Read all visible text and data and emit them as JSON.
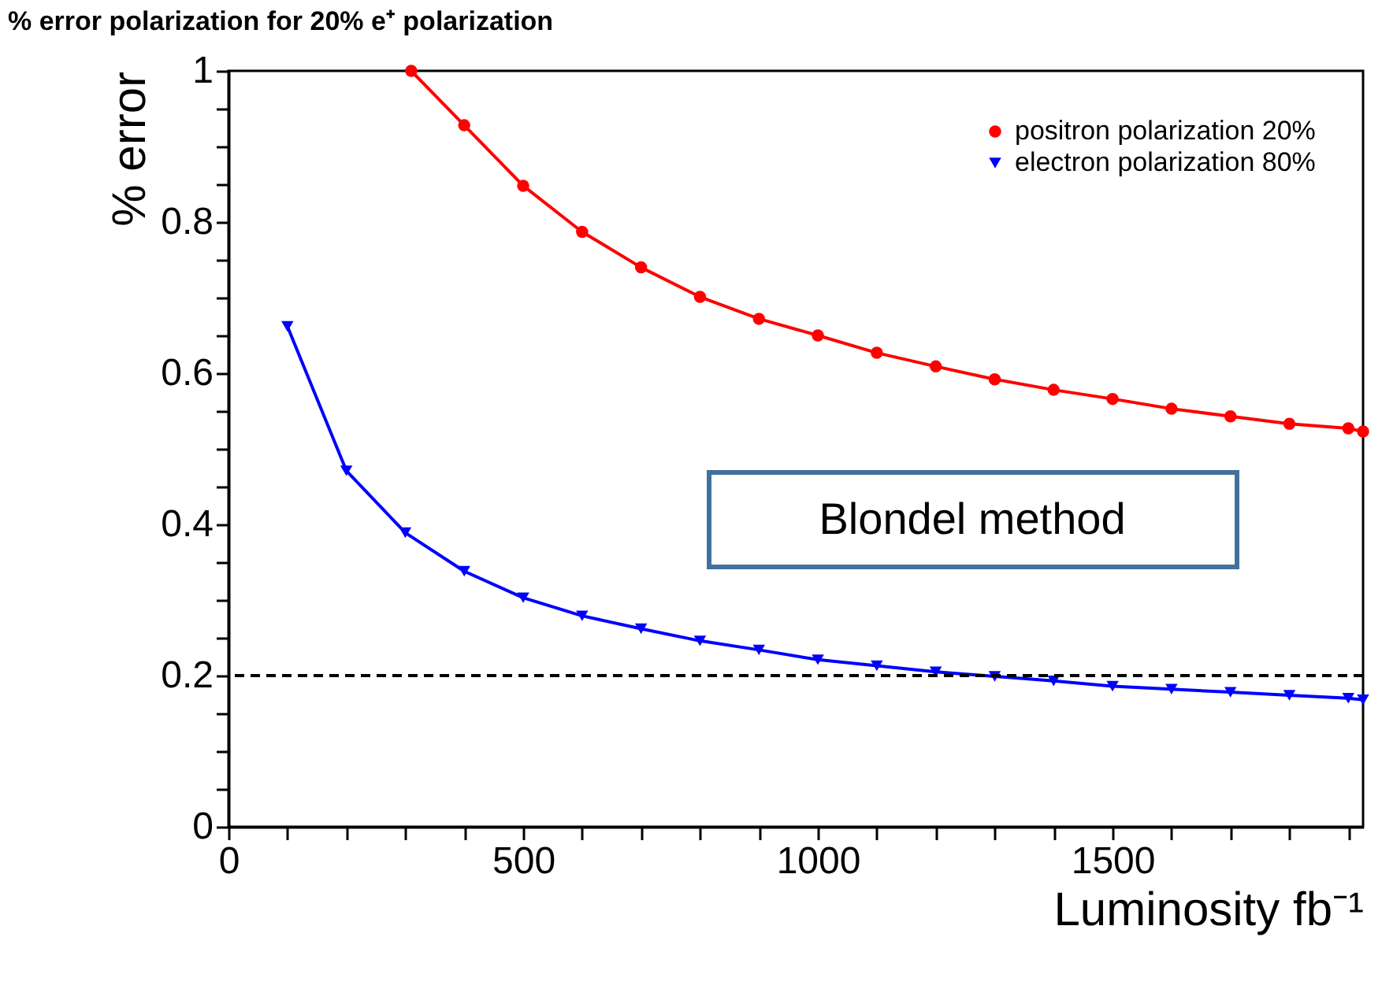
{
  "chart_data": {
    "type": "line",
    "title": "% error polarization for 20% e⁺ polarization",
    "xlabel": "Luminosity fb⁻¹",
    "ylabel": "% error",
    "xlim": [
      0,
      1925
    ],
    "ylim": [
      0,
      1
    ],
    "xticks": [
      0,
      {
        "value": 100,
        "label": null
      },
      {
        "value": 200,
        "label": null
      },
      {
        "value": 300,
        "label": null
      },
      {
        "value": 400,
        "label": null
      },
      500,
      {
        "value": 600,
        "label": null
      },
      {
        "value": 700,
        "label": null
      },
      {
        "value": 800,
        "label": null
      },
      {
        "value": 900,
        "label": null
      },
      1000,
      {
        "value": 1100,
        "label": null
      },
      {
        "value": 1200,
        "label": null
      },
      {
        "value": 1300,
        "label": null
      },
      {
        "value": 1400,
        "label": null
      },
      1500,
      {
        "value": 1600,
        "label": null
      },
      {
        "value": 1700,
        "label": null
      },
      {
        "value": 1800,
        "label": null
      },
      {
        "value": 1900,
        "label": null
      }
    ],
    "yticks": [
      0,
      {
        "value": 0.05,
        "label": null
      },
      {
        "value": 0.1,
        "label": null
      },
      {
        "value": 0.15,
        "label": null
      },
      0.2,
      {
        "value": 0.25,
        "label": null
      },
      {
        "value": 0.3,
        "label": null
      },
      {
        "value": 0.35,
        "label": null
      },
      0.4,
      {
        "value": 0.45,
        "label": null
      },
      {
        "value": 0.5,
        "label": null
      },
      {
        "value": 0.55,
        "label": null
      },
      0.6,
      {
        "value": 0.65,
        "label": null
      },
      {
        "value": 0.7,
        "label": null
      },
      {
        "value": 0.75,
        "label": null
      },
      0.8,
      {
        "value": 0.85,
        "label": null
      },
      {
        "value": 0.9,
        "label": null
      },
      {
        "value": 0.95,
        "label": null
      },
      1
    ],
    "grid": false,
    "legend": "top right",
    "line_style": "solid",
    "series": [
      {
        "name": "positron polarization 20%",
        "color": "#ff0000",
        "marker": "circle",
        "x": [
          310,
          400,
          500,
          600,
          700,
          800,
          900,
          1000,
          1100,
          1200,
          1300,
          1400,
          1500,
          1600,
          1700,
          1800,
          1900,
          1925
        ],
        "values": [
          1.0,
          0.928,
          0.848,
          0.787,
          0.74,
          0.701,
          0.672,
          0.65,
          0.627,
          0.609,
          0.592,
          0.578,
          0.566,
          0.553,
          0.543,
          0.533,
          0.527,
          0.523
        ]
      },
      {
        "name": "electron polarization 80%",
        "color": "#0000ff",
        "marker": "triangle",
        "x": [
          100,
          200,
          300,
          400,
          500,
          600,
          700,
          800,
          900,
          1000,
          1100,
          1200,
          1300,
          1400,
          1500,
          1600,
          1700,
          1800,
          1900,
          1925
        ],
        "values": [
          0.662,
          0.471,
          0.389,
          0.338,
          0.303,
          0.279,
          0.262,
          0.246,
          0.234,
          0.221,
          0.213,
          0.205,
          0.199,
          0.193,
          0.186,
          0.182,
          0.178,
          0.174,
          0.17,
          0.168
        ]
      }
    ],
    "ref_lines": [
      {
        "axis": "y",
        "value": 0.2,
        "color": "#000000",
        "line_style": "dashed"
      }
    ],
    "annotations": [
      "Blondel method"
    ]
  }
}
